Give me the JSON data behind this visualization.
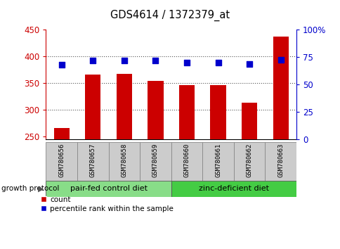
{
  "title": "GDS4614 / 1372379_at",
  "samples": [
    "GSM780656",
    "GSM780657",
    "GSM780658",
    "GSM780659",
    "GSM780660",
    "GSM780661",
    "GSM780662",
    "GSM780663"
  ],
  "counts": [
    267,
    367,
    368,
    355,
    347,
    347,
    314,
    438
  ],
  "percentiles": [
    68,
    72,
    72,
    72,
    70,
    70,
    69,
    73
  ],
  "ylim_left": [
    245,
    450
  ],
  "ylim_right": [
    0,
    100
  ],
  "yticks_left": [
    250,
    300,
    350,
    400,
    450
  ],
  "yticks_right": [
    0,
    25,
    50,
    75,
    100
  ],
  "bar_color": "#cc0000",
  "dot_color": "#0000cc",
  "group1_label": "pair-fed control diet",
  "group2_label": "zinc-deficient diet",
  "group1_color": "#88dd88",
  "group2_color": "#44cc44",
  "group_protocol_label": "growth protocol",
  "group1_indices": [
    0,
    1,
    2,
    3
  ],
  "group2_indices": [
    4,
    5,
    6,
    7
  ],
  "legend_count_label": "count",
  "legend_percentile_label": "percentile rank within the sample",
  "grid_color": "#555555",
  "tick_label_color_left": "#cc0000",
  "tick_label_color_right": "#0000cc",
  "bar_width": 0.5,
  "dot_size": 35,
  "bg_color": "#ffffff"
}
